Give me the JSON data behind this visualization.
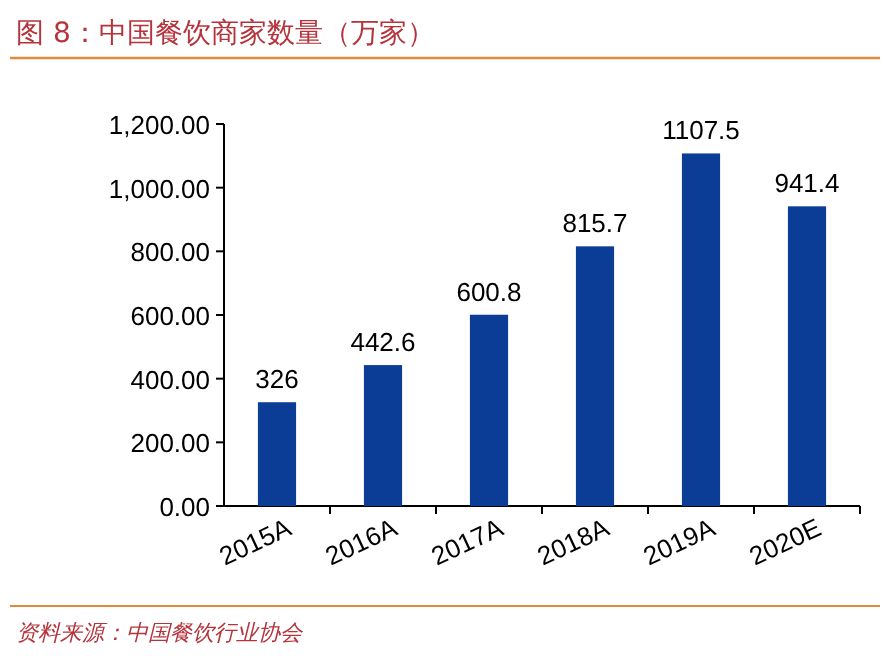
{
  "chart_data": {
    "type": "bar",
    "title": "图 8：中国餐饮商家数量（万家）",
    "annotations": [
      "资料来源：中国餐饮行业协会"
    ],
    "categories": [
      "2015A",
      "2016A",
      "2017A",
      "2018A",
      "2019A",
      "2020E"
    ],
    "values": [
      326,
      442.6,
      600.8,
      815.7,
      1107.5,
      941.4
    ],
    "color": "#0b3c96",
    "ylim": [
      0,
      1200
    ],
    "yticks": [
      {
        "value": 0,
        "label": "0.00"
      },
      {
        "value": 200,
        "label": "200.00"
      },
      {
        "value": 400,
        "label": "400.00"
      },
      {
        "value": 600,
        "label": "600.00"
      },
      {
        "value": 800,
        "label": "800.00"
      },
      {
        "value": 1000,
        "label": "1,000.00"
      },
      {
        "value": 1200,
        "label": "1,200.00"
      }
    ],
    "data_labels": true
  }
}
